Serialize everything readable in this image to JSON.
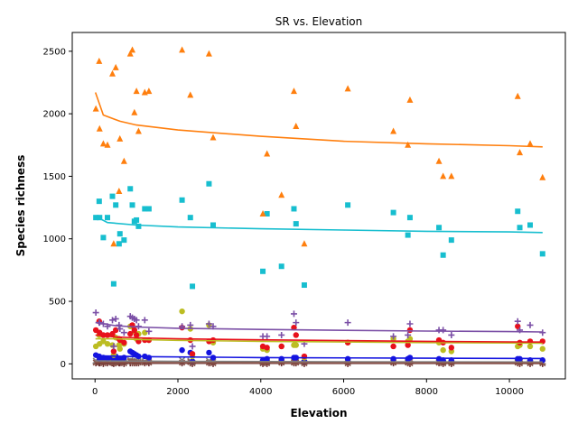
{
  "chart_data": {
    "type": "scatter",
    "title": "SR vs. Elevation",
    "xlabel": "Elevation",
    "ylabel": "Species richness",
    "xlim": [
      -550,
      11350
    ],
    "ylim": [
      -120,
      2650
    ],
    "xticks": [
      0,
      2000,
      4000,
      6000,
      8000,
      10000
    ],
    "yticks": [
      0,
      500,
      1000,
      1500,
      2000,
      2500
    ],
    "x": [
      20,
      100,
      110,
      200,
      300,
      420,
      450,
      500,
      580,
      600,
      700,
      850,
      900,
      950,
      1000,
      1050,
      1200,
      1300,
      2100,
      2300,
      2350,
      2750,
      2850,
      4050,
      4150,
      4500,
      4800,
      4850,
      5050,
      6100,
      7200,
      7550,
      7600,
      8300,
      8400,
      8600,
      10200,
      10250,
      10500,
      10800
    ],
    "series": [
      {
        "name": "orange",
        "marker": "triangle",
        "color": "#ff7f0e",
        "values": [
          2040,
          2420,
          1880,
          1760,
          1750,
          2320,
          960,
          2370,
          1380,
          1800,
          1620,
          2480,
          2510,
          2010,
          2180,
          1860,
          2170,
          2180,
          2510,
          2150,
          null,
          2480,
          1810,
          1200,
          1680,
          1350,
          2180,
          1900,
          960,
          2200,
          1860,
          1750,
          2110,
          1620,
          1500,
          1500,
          2140,
          1690,
          1760,
          1490
        ],
        "fit": [
          [
            10,
            2170
          ],
          [
            200,
            1990
          ],
          [
            600,
            1940
          ],
          [
            1000,
            1910
          ],
          [
            2000,
            1870
          ],
          [
            4000,
            1820
          ],
          [
            6000,
            1780
          ],
          [
            8000,
            1760
          ],
          [
            10000,
            1745
          ],
          [
            10800,
            1735
          ]
        ]
      },
      {
        "name": "cyan",
        "marker": "square",
        "color": "#17becf",
        "values": [
          1170,
          1300,
          1170,
          1010,
          1170,
          1340,
          640,
          1270,
          960,
          1040,
          990,
          1400,
          1270,
          1140,
          1150,
          1100,
          1240,
          1240,
          1310,
          1170,
          620,
          1440,
          1110,
          740,
          1200,
          780,
          1240,
          1120,
          630,
          1270,
          1210,
          1030,
          1170,
          1090,
          870,
          990,
          1220,
          1090,
          1110,
          880
        ],
        "fit": [
          [
            10,
            1180
          ],
          [
            300,
            1130
          ],
          [
            1000,
            1110
          ],
          [
            2000,
            1095
          ],
          [
            4000,
            1080
          ],
          [
            6000,
            1070
          ],
          [
            8000,
            1060
          ],
          [
            10000,
            1055
          ],
          [
            10800,
            1050
          ]
        ]
      },
      {
        "name": "purple",
        "marker": "plus",
        "color": "#7b4fa6",
        "values": [
          410,
          330,
          330,
          320,
          300,
          350,
          140,
          360,
          310,
          280,
          250,
          380,
          370,
          360,
          350,
          300,
          350,
          260,
          300,
          310,
          140,
          320,
          300,
          220,
          220,
          230,
          400,
          330,
          160,
          330,
          220,
          230,
          320,
          270,
          270,
          230,
          340,
          270,
          310,
          250
        ],
        "fit": [
          [
            10,
            330
          ],
          [
            500,
            305
          ],
          [
            1000,
            295
          ],
          [
            2000,
            285
          ],
          [
            4000,
            275
          ],
          [
            6000,
            268
          ],
          [
            8000,
            262
          ],
          [
            10000,
            258
          ],
          [
            10800,
            255
          ]
        ]
      },
      {
        "name": "red",
        "marker": "circle",
        "color": "#e8101b",
        "values": [
          270,
          340,
          250,
          230,
          230,
          240,
          100,
          270,
          200,
          190,
          170,
          240,
          310,
          270,
          230,
          180,
          190,
          190,
          290,
          190,
          80,
          180,
          190,
          140,
          130,
          140,
          290,
          230,
          60,
          170,
          140,
          150,
          270,
          190,
          170,
          130,
          300,
          170,
          180,
          180
        ],
        "fit": [
          [
            10,
            230
          ],
          [
            500,
            215
          ],
          [
            1000,
            208
          ],
          [
            2000,
            200
          ],
          [
            4000,
            192
          ],
          [
            6000,
            186
          ],
          [
            8000,
            180
          ],
          [
            10000,
            176
          ],
          [
            10800,
            174
          ]
        ]
      },
      {
        "name": "olive",
        "marker": "circle",
        "color": "#bcbd22",
        "values": [
          140,
          230,
          160,
          180,
          160,
          150,
          70,
          210,
          150,
          120,
          160,
          300,
          300,
          260,
          200,
          240,
          250,
          190,
          420,
          280,
          60,
          310,
          170,
          120,
          110,
          140,
          150,
          150,
          50,
          170,
          200,
          180,
          200,
          170,
          110,
          100,
          140,
          150,
          140,
          120
        ],
        "fit": [
          [
            10,
            200
          ],
          [
            500,
            200
          ],
          [
            1000,
            195
          ],
          [
            2000,
            188
          ],
          [
            4000,
            180
          ],
          [
            6000,
            175
          ],
          [
            8000,
            170
          ],
          [
            10000,
            167
          ],
          [
            10800,
            165
          ]
        ]
      },
      {
        "name": "blue",
        "marker": "circle",
        "color": "#1414e0",
        "values": [
          70,
          60,
          40,
          50,
          40,
          50,
          30,
          60,
          40,
          40,
          50,
          100,
          90,
          80,
          70,
          60,
          60,
          50,
          110,
          90,
          20,
          90,
          50,
          30,
          40,
          40,
          50,
          50,
          20,
          40,
          40,
          40,
          50,
          40,
          30,
          30,
          40,
          40,
          30,
          30
        ],
        "fit": [
          [
            10,
            65
          ],
          [
            1000,
            58
          ],
          [
            4000,
            50
          ],
          [
            8000,
            45
          ],
          [
            10800,
            43
          ]
        ]
      },
      {
        "name": "brown",
        "marker": "x",
        "color": "#8c564b",
        "values": [
          10,
          15,
          10,
          5,
          10,
          10,
          5,
          15,
          10,
          10,
          5,
          20,
          15,
          10,
          10,
          10,
          10,
          10,
          10,
          15,
          5,
          10,
          5,
          5,
          5,
          10,
          10,
          10,
          5,
          5,
          10,
          10,
          5,
          10,
          5,
          5,
          10,
          5,
          5,
          5
        ],
        "fit": [
          [
            10,
            12
          ],
          [
            2000,
            10
          ],
          [
            6000,
            8
          ],
          [
            10800,
            7
          ]
        ]
      },
      {
        "name": "gray",
        "marker": "x",
        "color": "#7f7f7f",
        "values": [
          25,
          30,
          20,
          15,
          20,
          25,
          10,
          30,
          20,
          20,
          15,
          30,
          25,
          25,
          20,
          20,
          20,
          20,
          30,
          25,
          10,
          25,
          20,
          10,
          10,
          15,
          20,
          20,
          10,
          15,
          15,
          15,
          20,
          15,
          10,
          10,
          15,
          15,
          10,
          10
        ],
        "fit": [
          [
            10,
            24
          ],
          [
            2000,
            20
          ],
          [
            6000,
            17
          ],
          [
            10800,
            15
          ]
        ]
      },
      {
        "name": "dark-red",
        "marker": "plus",
        "color": "#6b2e2e",
        "values": [
          5,
          5,
          5,
          0,
          5,
          5,
          0,
          5,
          5,
          5,
          0,
          5,
          5,
          5,
          5,
          5,
          5,
          5,
          5,
          5,
          0,
          5,
          0,
          0,
          0,
          5,
          5,
          5,
          0,
          0,
          5,
          5,
          0,
          5,
          0,
          0,
          5,
          0,
          0,
          0
        ],
        "fit": [
          [
            10,
            5
          ],
          [
            10800,
            3
          ]
        ]
      }
    ]
  }
}
